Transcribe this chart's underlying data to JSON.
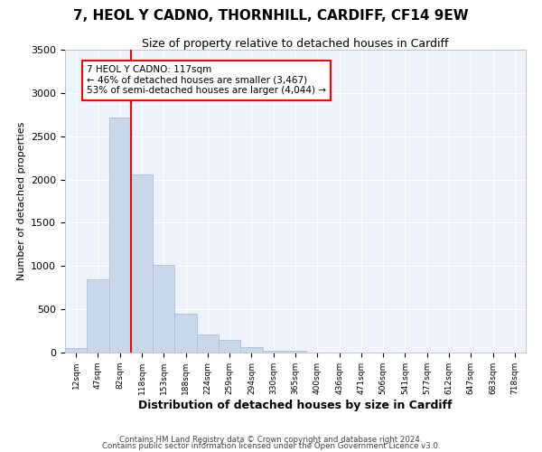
{
  "title": "7, HEOL Y CADNO, THORNHILL, CARDIFF, CF14 9EW",
  "subtitle": "Size of property relative to detached houses in Cardiff",
  "xlabel": "Distribution of detached houses by size in Cardiff",
  "ylabel": "Number of detached properties",
  "bar_color": "#c8d8ea",
  "bar_edge_color": "#a8c0d8",
  "background_color": "#eef2fa",
  "grid_color": "#ffffff",
  "figure_bg": "#ffffff",
  "bin_labels": [
    "12sqm",
    "47sqm",
    "82sqm",
    "118sqm",
    "153sqm",
    "188sqm",
    "224sqm",
    "259sqm",
    "294sqm",
    "330sqm",
    "365sqm",
    "400sqm",
    "436sqm",
    "471sqm",
    "506sqm",
    "541sqm",
    "577sqm",
    "612sqm",
    "647sqm",
    "683sqm",
    "718sqm"
  ],
  "bar_values": [
    55,
    850,
    2720,
    2060,
    1010,
    450,
    205,
    145,
    60,
    25,
    25,
    0,
    0,
    0,
    0,
    0,
    0,
    0,
    0,
    0,
    0
  ],
  "ylim": [
    0,
    3500
  ],
  "yticks": [
    0,
    500,
    1000,
    1500,
    2000,
    2500,
    3000,
    3500
  ],
  "property_line_x": 3,
  "property_line_label": "7 HEOL Y CADNO: 117sqm",
  "annotation_line1": "← 46% of detached houses are smaller (3,467)",
  "annotation_line2": "53% of semi-detached houses are larger (4,044) →",
  "footnote1": "Contains HM Land Registry data © Crown copyright and database right 2024.",
  "footnote2": "Contains public sector information licensed under the Open Government Licence v3.0."
}
